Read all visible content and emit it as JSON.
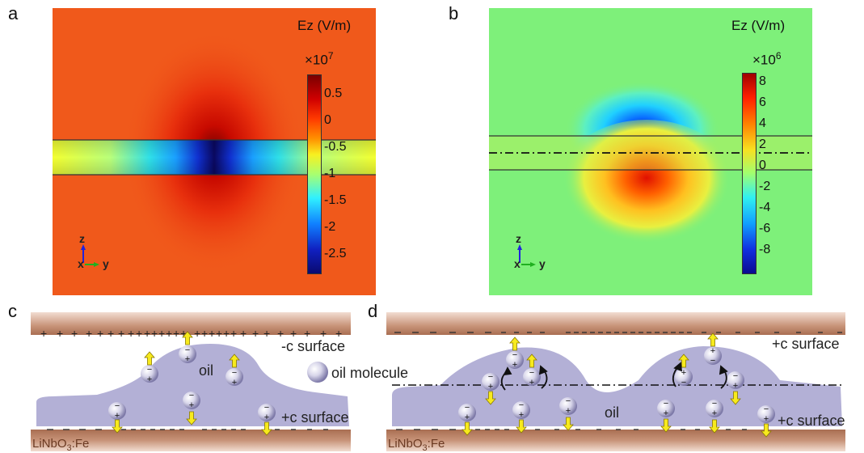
{
  "panel_a": {
    "letter": "a",
    "cb_title": "Ez (V/m)",
    "cb_multiplier_base": "×10",
    "cb_multiplier_exp": "7",
    "cb_ticks": [
      "0.5",
      "0",
      "-0.5",
      "-1",
      "-1.5",
      "-2",
      "-2.5"
    ],
    "axis_z": "z",
    "axis_xy": "x",
    "axis_y": "y"
  },
  "panel_b": {
    "letter": "b",
    "cb_title": "Ez (V/m)",
    "cb_multiplier_base": "×10",
    "cb_multiplier_exp": "6",
    "cb_ticks": [
      "8",
      "6",
      "4",
      "2",
      "0",
      "-2",
      "-4",
      "-6",
      "-8"
    ],
    "axis_z": "z",
    "axis_xy": "x",
    "axis_y": "y"
  },
  "panel_c": {
    "letter": "c",
    "top_surface_label": "-c surface",
    "bottom_surface_label": "+c surface",
    "oil_label": "oil",
    "legend_label": "oil molecule",
    "substrate_label": "LiNbO",
    "substrate_sub": "3",
    "substrate_suffix": ":Fe",
    "top_charge_sign": "+",
    "bottom_charge_sign": "−"
  },
  "panel_d": {
    "letter": "d",
    "top_surface_label": "+c surface",
    "bottom_surface_label": "+c surface",
    "oil_label": "oil",
    "substrate_label": "LiNbO",
    "substrate_sub": "3",
    "substrate_suffix": ":Fe",
    "top_charge_sign": "−",
    "bottom_charge_sign": "−"
  },
  "colors": {
    "substrate": "#b98a72",
    "oil": "#b3b0d6",
    "arrow": "#f7ea1d",
    "orange_bg": "#f0591b",
    "green_bg": "#7ef07a"
  }
}
